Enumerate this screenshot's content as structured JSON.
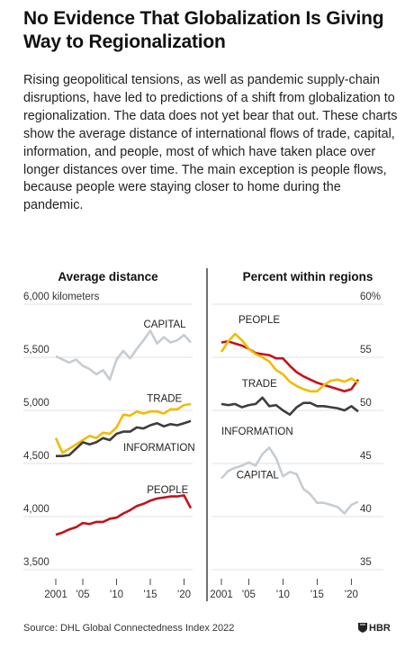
{
  "header": {
    "title": "No Evidence That Globalization Is Giving Way to Regionalization",
    "intro": "Rising geopolitical tensions, as well as pandemic supply-chain disruptions, have led to predictions of a shift from globalization to regionalization. The data does not yet bear that out. These charts show the average distance of international flows of trade, capital, information, and people, most of which have taken place over longer distances over time. The main exception is people flows, because people were staying closer to home during the pandemic."
  },
  "footer": {
    "source": "Source: DHL Global Connectedness Index 2022",
    "logo_text": "HBR"
  },
  "colors": {
    "capital": "#c6cdd2",
    "trade": "#f2bb00",
    "information": "#3d3d3d",
    "people": "#c4121a",
    "grid": "#d7d7d7"
  },
  "chart_data": [
    {
      "type": "line",
      "title": "Average distance",
      "ylabel": "kilometers",
      "ylim": [
        3500,
        6000
      ],
      "xlim": [
        2001,
        2021
      ],
      "grid": true,
      "y_ticks": [
        {
          "value": 6000,
          "label": "6,000 kilometers"
        },
        {
          "value": 5500,
          "label": "5,500"
        },
        {
          "value": 5000,
          "label": "5,000"
        },
        {
          "value": 4500,
          "label": "4,500"
        },
        {
          "value": 4000,
          "label": "4,000"
        },
        {
          "value": 3500,
          "label": "3,500"
        }
      ],
      "x_ticks": [
        {
          "value": 2001,
          "label": "2001"
        },
        {
          "value": 2005,
          "label": "'05"
        },
        {
          "value": 2010,
          "label": "'10"
        },
        {
          "value": 2015,
          "label": "'15"
        },
        {
          "value": 2020,
          "label": "'20"
        }
      ],
      "x": [
        2001,
        2002,
        2003,
        2004,
        2005,
        2006,
        2007,
        2008,
        2009,
        2010,
        2011,
        2012,
        2013,
        2014,
        2015,
        2016,
        2017,
        2018,
        2019,
        2020,
        2021
      ],
      "series": [
        {
          "name": "CAPITAL",
          "key": "capital",
          "label_pos": [
            2014,
            5780
          ],
          "values": [
            5510,
            5480,
            5450,
            5480,
            5420,
            5390,
            5340,
            5380,
            5290,
            5480,
            5560,
            5490,
            5580,
            5660,
            5750,
            5630,
            5690,
            5640,
            5660,
            5710,
            5640
          ]
        },
        {
          "name": "TRADE",
          "key": "trade",
          "label_pos": [
            2014.5,
            5080
          ],
          "values": [
            4740,
            4600,
            4640,
            4680,
            4720,
            4760,
            4740,
            4790,
            4780,
            4840,
            4960,
            4950,
            4990,
            4970,
            4990,
            4990,
            4970,
            5010,
            5010,
            5050,
            5060
          ]
        },
        {
          "name": "INFORMATION",
          "key": "information",
          "label_pos": [
            2011,
            4620
          ],
          "values": [
            4570,
            4570,
            4580,
            4640,
            4700,
            4680,
            4700,
            4740,
            4720,
            4780,
            4800,
            4800,
            4840,
            4830,
            4860,
            4880,
            4850,
            4870,
            4860,
            4880,
            4900
          ]
        },
        {
          "name": "PEOPLE",
          "key": "people",
          "label_pos": [
            2014.5,
            4220
          ],
          "values": [
            3830,
            3850,
            3880,
            3900,
            3940,
            3930,
            3950,
            3950,
            3980,
            3990,
            4030,
            4060,
            4100,
            4120,
            4150,
            4170,
            4180,
            4190,
            4190,
            4200,
            4080
          ]
        }
      ]
    },
    {
      "type": "line",
      "title": "Percent within regions",
      "ylabel": "%",
      "ylim": [
        35,
        60
      ],
      "xlim": [
        2001,
        2021
      ],
      "grid": true,
      "y_ticks": [
        {
          "value": 60,
          "label": "60%"
        },
        {
          "value": 55,
          "label": "55"
        },
        {
          "value": 50,
          "label": "50"
        },
        {
          "value": 45,
          "label": "45"
        },
        {
          "value": 40,
          "label": "40"
        },
        {
          "value": 35,
          "label": "35"
        }
      ],
      "x_ticks": [
        {
          "value": 2001,
          "label": "2001"
        },
        {
          "value": 2005,
          "label": "'05"
        },
        {
          "value": 2010,
          "label": "'10"
        },
        {
          "value": 2015,
          "label": "'15"
        },
        {
          "value": 2020,
          "label": "'20"
        }
      ],
      "x": [
        2001,
        2002,
        2003,
        2004,
        2005,
        2006,
        2007,
        2008,
        2009,
        2010,
        2011,
        2012,
        2013,
        2014,
        2015,
        2016,
        2017,
        2018,
        2019,
        2020,
        2021
      ],
      "series": [
        {
          "name": "PEOPLE",
          "key": "people",
          "label_pos": [
            2003.5,
            58.2
          ],
          "values": [
            56.4,
            56.5,
            56.3,
            56.1,
            55.8,
            55.4,
            55.3,
            55.2,
            54.9,
            54.9,
            54.2,
            53.6,
            53.2,
            52.9,
            52.6,
            52.4,
            52.2,
            52.0,
            51.8,
            52.0,
            52.9
          ]
        },
        {
          "name": "TRADE",
          "key": "trade",
          "label_pos": [
            2004,
            52.2
          ],
          "values": [
            55.5,
            56.5,
            57.2,
            56.6,
            55.8,
            55.3,
            55.0,
            54.6,
            53.8,
            53.4,
            52.7,
            52.3,
            52.0,
            51.8,
            51.8,
            52.4,
            52.8,
            52.9,
            52.7,
            53.0,
            52.6
          ]
        },
        {
          "name": "INFORMATION",
          "key": "information",
          "label_pos": [
            2001,
            47.7
          ],
          "values": [
            50.6,
            50.5,
            50.6,
            50.3,
            50.5,
            50.6,
            51.2,
            50.4,
            50.5,
            50.0,
            49.6,
            50.3,
            50.7,
            50.7,
            50.4,
            50.4,
            50.3,
            50.2,
            50.0,
            50.4,
            49.9
          ]
        },
        {
          "name": "CAPITAL",
          "key": "capital",
          "label_pos": [
            2003.2,
            43.6
          ],
          "values": [
            43.6,
            44.3,
            44.6,
            44.8,
            45.1,
            44.8,
            45.9,
            46.5,
            45.5,
            43.8,
            44.2,
            44.0,
            42.6,
            42.1,
            41.3,
            41.3,
            41.1,
            40.9,
            40.3,
            41.1,
            41.4
          ]
        }
      ]
    }
  ]
}
